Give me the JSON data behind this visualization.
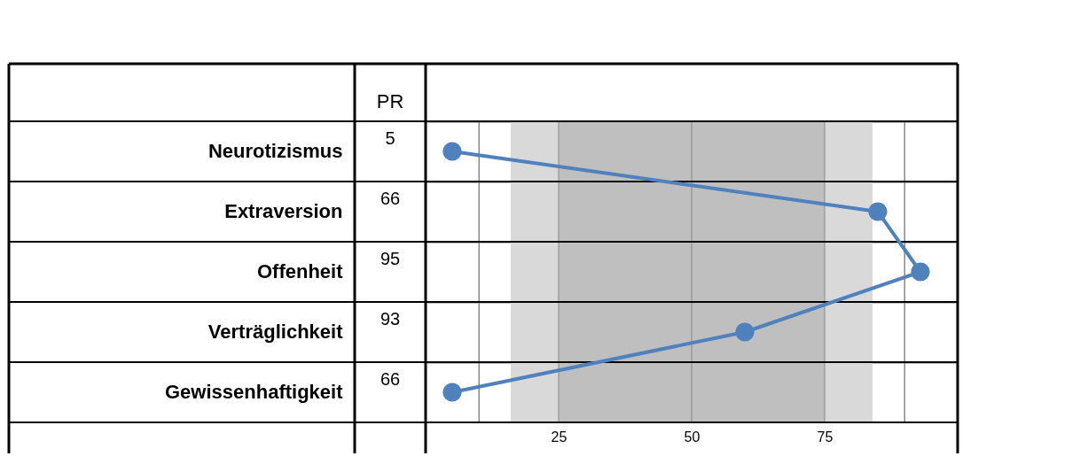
{
  "chart_data": {
    "type": "line",
    "orientation": "horizontal",
    "categories": [
      "Neurotizismus",
      "Extraversion",
      "Offenheit",
      "Verträglichkeit",
      "Gewissenhaftigkeit"
    ],
    "series": [
      {
        "color": "#4f81bd",
        "values": [
          5,
          85,
          93,
          60,
          5
        ]
      }
    ],
    "y2label": "PR",
    "annotations": [
      "5",
      "66",
      "95",
      "93",
      "66"
    ],
    "xlim": [
      0,
      100
    ],
    "xticks": [
      {
        "value": 10,
        "label": null
      },
      25,
      50,
      75,
      {
        "value": 90,
        "label": null
      }
    ],
    "bands": [
      {
        "axis": "x",
        "from": 16,
        "to": 84,
        "color": "#d9d9d9"
      },
      {
        "axis": "x",
        "from": 25,
        "to": 75,
        "color": "#bfbfbf"
      }
    ],
    "grid": true,
    "marker": "circle",
    "line_style": "solid"
  }
}
